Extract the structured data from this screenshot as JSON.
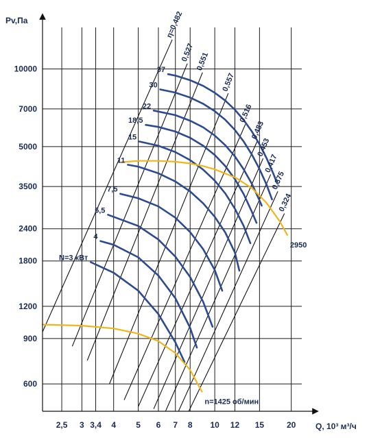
{
  "chart_data": {
    "type": "line",
    "xlabel": "Q, 10³ м³/ч",
    "ylabel": "Pv,Па",
    "x_scale": "log",
    "y_scale": "log",
    "xlim": [
      2.1,
      22
    ],
    "ylim": [
      470,
      14500
    ],
    "x_ticks": [
      2.5,
      3,
      3.4,
      4,
      5,
      6,
      7,
      8,
      10,
      12,
      15,
      20
    ],
    "x_tick_labels": [
      "2,5",
      "3",
      "3,4",
      "4",
      "5",
      "6",
      "7",
      "8",
      "10",
      "12",
      "15",
      "20"
    ],
    "y_ticks": [
      600,
      900,
      1200,
      1800,
      2400,
      3500,
      5000,
      7000,
      10000
    ],
    "y_tick_labels": [
      "600",
      "900",
      "1200",
      "1800",
      "2400",
      "3500",
      "5000",
      "7000",
      "10000"
    ],
    "grid": true,
    "speed_curves": [
      {
        "name": "n=1425 об/мин",
        "points": [
          [
            2.1,
            1020
          ],
          [
            3.0,
            1010
          ],
          [
            4.0,
            985
          ],
          [
            5.0,
            940
          ],
          [
            6.0,
            880
          ],
          [
            7.0,
            790
          ],
          [
            8.0,
            680
          ],
          [
            8.9,
            560
          ]
        ]
      },
      {
        "name": "2950",
        "points": [
          [
            4.3,
            4350
          ],
          [
            5.0,
            4400
          ],
          [
            6.0,
            4400
          ],
          [
            7.0,
            4370
          ],
          [
            8.0,
            4300
          ],
          [
            9.0,
            4200
          ],
          [
            10.0,
            4080
          ],
          [
            12.0,
            3800
          ],
          [
            14.0,
            3450
          ],
          [
            16.0,
            3020
          ],
          [
            18.0,
            2570
          ],
          [
            19.3,
            2270
          ]
        ]
      }
    ],
    "power_curves": [
      {
        "label": "N=3 кВт",
        "points": [
          [
            3.25,
            1780
          ],
          [
            4.0,
            1620
          ],
          [
            5.0,
            1380
          ],
          [
            6.0,
            1120
          ],
          [
            7.0,
            870
          ],
          [
            7.6,
            730
          ]
        ]
      },
      {
        "label": "4",
        "points": [
          [
            3.55,
            2150
          ],
          [
            4.0,
            2080
          ],
          [
            5.0,
            1860
          ],
          [
            6.0,
            1580
          ],
          [
            7.0,
            1290
          ],
          [
            8.0,
            990
          ],
          [
            8.5,
            830
          ]
        ]
      },
      {
        "label": "5,5",
        "points": [
          [
            3.8,
            2720
          ],
          [
            5.0,
            2460
          ],
          [
            6.0,
            2180
          ],
          [
            7.0,
            1870
          ],
          [
            8.0,
            1560
          ],
          [
            9.0,
            1250
          ],
          [
            9.8,
            1000
          ]
        ]
      },
      {
        "label": "7,5",
        "points": [
          [
            4.25,
            3280
          ],
          [
            5.0,
            3150
          ],
          [
            6.0,
            2930
          ],
          [
            7.0,
            2650
          ],
          [
            8.0,
            2330
          ],
          [
            9.0,
            2000
          ],
          [
            10.0,
            1660
          ],
          [
            10.7,
            1380
          ]
        ]
      },
      {
        "label": "11",
        "points": [
          [
            4.55,
            4250
          ],
          [
            5.0,
            4180
          ],
          [
            6.0,
            3940
          ],
          [
            7.0,
            3660
          ],
          [
            8.0,
            3350
          ],
          [
            9.0,
            3010
          ],
          [
            10.0,
            2670
          ],
          [
            11.0,
            2320
          ],
          [
            12.0,
            1940
          ],
          [
            12.5,
            1650
          ]
        ]
      },
      {
        "label": "15",
        "points": [
          [
            5.05,
            5230
          ],
          [
            6.0,
            5040
          ],
          [
            7.0,
            4760
          ],
          [
            8.0,
            4430
          ],
          [
            9.0,
            4070
          ],
          [
            10.0,
            3690
          ],
          [
            11.0,
            3290
          ],
          [
            12.0,
            2870
          ],
          [
            13.0,
            2460
          ],
          [
            13.8,
            2110
          ]
        ]
      },
      {
        "label": "18,5",
        "points": [
          [
            5.35,
            6070
          ],
          [
            6.0,
            5960
          ],
          [
            7.0,
            5720
          ],
          [
            8.0,
            5410
          ],
          [
            9.0,
            5040
          ],
          [
            10.0,
            4640
          ],
          [
            11.0,
            4200
          ],
          [
            12.0,
            3740
          ],
          [
            13.0,
            3270
          ],
          [
            14.0,
            2790
          ],
          [
            14.6,
            2530
          ]
        ]
      },
      {
        "label": "22",
        "points": [
          [
            5.75,
            6900
          ],
          [
            7.0,
            6620
          ],
          [
            8.0,
            6300
          ],
          [
            9.0,
            5940
          ],
          [
            10.0,
            5520
          ],
          [
            11.0,
            5060
          ],
          [
            12.0,
            4580
          ],
          [
            13.0,
            4080
          ],
          [
            14.0,
            3580
          ],
          [
            15.0,
            3090
          ],
          [
            15.3,
            2950
          ]
        ]
      },
      {
        "label": "30",
        "points": [
          [
            6.1,
            8330
          ],
          [
            7.0,
            8100
          ],
          [
            8.0,
            7750
          ],
          [
            9.0,
            7330
          ],
          [
            10.0,
            6860
          ],
          [
            11.0,
            6350
          ],
          [
            12.0,
            5800
          ],
          [
            13.0,
            5230
          ],
          [
            14.0,
            4650
          ],
          [
            15.0,
            4090
          ],
          [
            16.0,
            3550
          ],
          [
            16.8,
            3120
          ]
        ]
      },
      {
        "label": "37",
        "points": [
          [
            6.55,
            9550
          ],
          [
            7.0,
            9430
          ],
          [
            8.0,
            9050
          ],
          [
            9.0,
            8600
          ],
          [
            10.0,
            8090
          ],
          [
            11.0,
            7540
          ],
          [
            12.0,
            6950
          ],
          [
            13.0,
            6340
          ],
          [
            14.0,
            5720
          ],
          [
            15.0,
            5100
          ],
          [
            16.0,
            4500
          ],
          [
            17.0,
            3930
          ],
          [
            17.6,
            3600
          ]
        ]
      }
    ],
    "efficiency_lines": [
      {
        "label": "η=0,482",
        "from": [
          2.1,
          955
        ],
        "to": [
          6.8,
          13000
        ]
      },
      {
        "label": "0,527",
        "from": [
          2.75,
          840
        ],
        "to": [
          7.8,
          10500
        ]
      },
      {
        "label": "0,551",
        "from": [
          3.15,
          740
        ],
        "to": [
          8.95,
          9700
        ]
      },
      {
        "label": "0,557",
        "from": [
          3.85,
          600
        ],
        "to": [
          11.3,
          8050
        ]
      },
      {
        "label": "0,516",
        "from": [
          4.4,
          520
        ],
        "to": [
          13.2,
          6100
        ]
      },
      {
        "label": "0,483",
        "from": [
          5.0,
          490
        ],
        "to": [
          14.7,
          5250
        ]
      },
      {
        "label": "0,453",
        "from": [
          5.75,
          480
        ],
        "to": [
          15.5,
          4500
        ]
      },
      {
        "label": "0,417",
        "from": [
          6.4,
          470
        ],
        "to": [
          16.6,
          3900
        ]
      },
      {
        "label": "0,375",
        "from": [
          7.2,
          470
        ],
        "to": [
          17.7,
          3350
        ]
      },
      {
        "label": "0,324",
        "from": [
          7.9,
          470
        ],
        "to": [
          18.8,
          2750
        ]
      }
    ]
  },
  "colors": {
    "speed_curve": "#f0b51a",
    "power_curve": "#2b4a8f",
    "efficiency_line": "#111111",
    "grid": "#111111",
    "text": "#1a2a55"
  }
}
